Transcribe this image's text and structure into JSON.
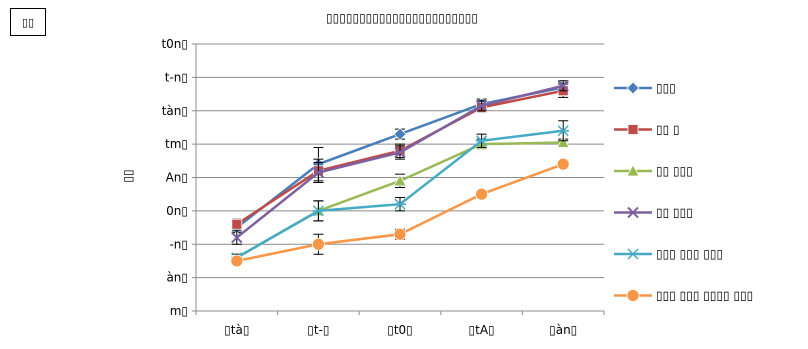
{
  "corner_label": "▯▯",
  "chart_data": {
    "type": "line",
    "title": "▯▯▯▯▯▯▯▯▯▯▯▯▯▯▯▯▯▯▯▯▯▯▯",
    "ylabel": "▯▯",
    "xlabel": "",
    "categories": [
      "▯tà▯",
      "▯t-▯",
      "▯t0▯",
      "▯tA▯",
      "▯àn▯"
    ],
    "ytick_labels": [
      "m▯",
      "àn▯",
      "-n▯",
      "0n▯",
      "An▯",
      "tm▯",
      "tàn▯",
      "t-n▯",
      "t0n▯"
    ],
    "ylim": [
      0,
      8
    ],
    "grid": true,
    "legend_position": "right",
    "series": [
      {
        "name": "▯▯▯",
        "color": "#4a7ebb",
        "marker": "diamond",
        "values": [
          2.5,
          4.4,
          5.3,
          6.2,
          6.7
        ],
        "errors": [
          0.15,
          0.5,
          0.15,
          0.15,
          0.15
        ]
      },
      {
        "name": "▯▯ ▯",
        "color": "#be4b48",
        "marker": "square",
        "values": [
          2.6,
          4.2,
          4.8,
          6.1,
          6.6
        ],
        "errors": [
          0.15,
          0.35,
          0.2,
          0.15,
          0.2
        ]
      },
      {
        "name": "▯▯ ▯▯▯",
        "color": "#98b954",
        "marker": "triangle",
        "values": [
          1.6,
          3.0,
          3.9,
          5.0,
          5.05
        ],
        "errors": [
          0.1,
          0.3,
          0.2,
          0.15,
          0.1
        ]
      },
      {
        "name": "▯▯ ▯▯▯",
        "color": "#7d60a0",
        "marker": "x",
        "values": [
          2.2,
          4.15,
          4.75,
          6.15,
          6.75
        ],
        "errors": [
          0.2,
          0.3,
          0.2,
          0.15,
          0.15
        ]
      },
      {
        "name": "▯▯▯ ▯▯▯ ▯▯▯",
        "color": "#46aac5",
        "marker": "star",
        "values": [
          1.6,
          3.0,
          3.2,
          5.1,
          5.4
        ],
        "errors": [
          0.1,
          0.3,
          0.2,
          0.2,
          0.3
        ]
      },
      {
        "name": "▯▯▯ ▯▯▯ ▯▯▯▯ ▯▯▯",
        "color": "#f79646",
        "marker": "circle",
        "values": [
          1.5,
          2.0,
          2.3,
          3.5,
          4.4
        ],
        "errors": [
          0.1,
          0.3,
          0.15,
          0.1,
          0.1
        ]
      }
    ]
  }
}
